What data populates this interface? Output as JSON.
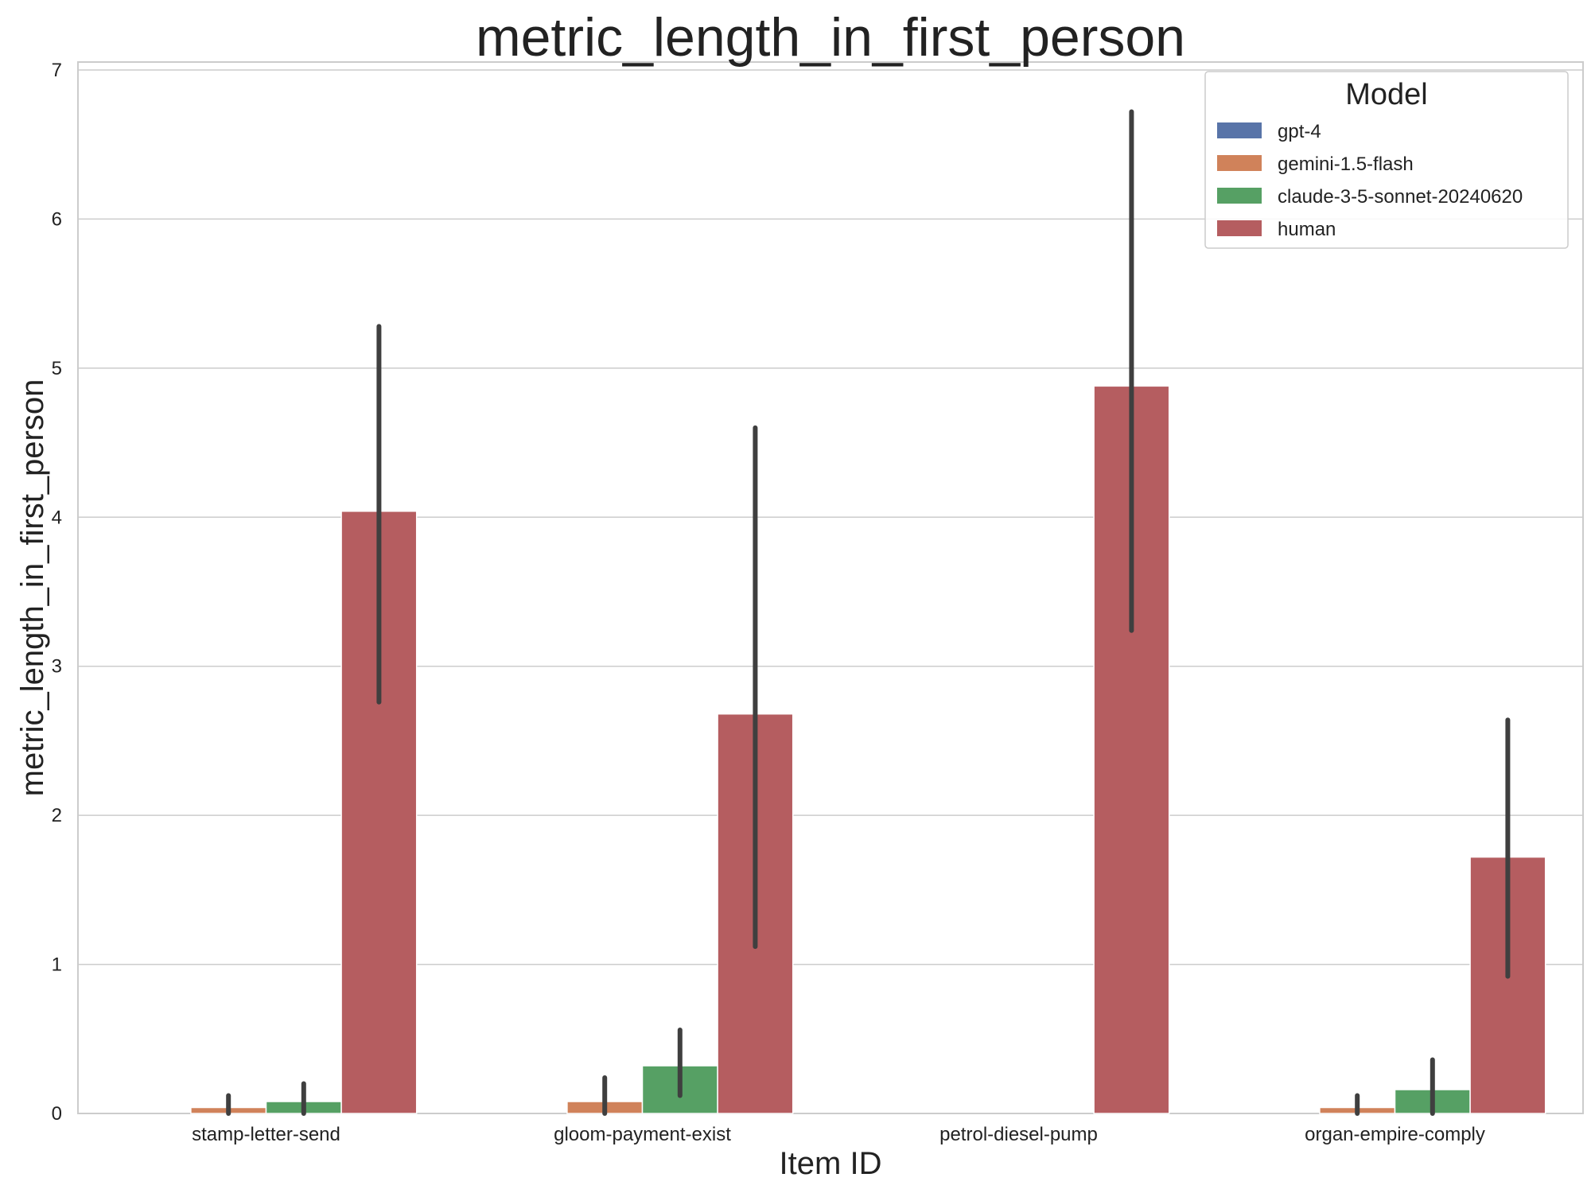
{
  "chart_data": {
    "type": "bar",
    "title": "metric_length_in_first_person",
    "xlabel": "Item ID",
    "ylabel": "metric_length_in_first_person",
    "ylim": [
      0,
      7
    ],
    "yticks": [
      0,
      1,
      2,
      3,
      4,
      5,
      6,
      7
    ],
    "grid": true,
    "legend": {
      "title": "Model",
      "placement": "top-right"
    },
    "categories": [
      "stamp-letter-send",
      "gloom-payment-exist",
      "petrol-diesel-pump",
      "organ-empire-comply"
    ],
    "series": [
      {
        "name": "gpt-4",
        "color": "#5874a8",
        "values": [
          0,
          0,
          0,
          0
        ],
        "ci": [
          null,
          null,
          null,
          null
        ]
      },
      {
        "name": "gemini-1.5-flash",
        "color": "#d0825a",
        "values": [
          0.04,
          0.08,
          0,
          0.04
        ],
        "ci": [
          [
            0,
            0.12
          ],
          [
            0,
            0.24
          ],
          null,
          [
            0,
            0.12
          ]
        ]
      },
      {
        "name": "claude-3-5-sonnet-20240620",
        "color": "#56a064",
        "values": [
          0.08,
          0.32,
          0,
          0.16
        ],
        "ci": [
          [
            0,
            0.2
          ],
          [
            0.12,
            0.56
          ],
          null,
          [
            0,
            0.36
          ]
        ]
      },
      {
        "name": "human",
        "color": "#b55d60",
        "values": [
          4.04,
          2.68,
          4.88,
          1.72
        ],
        "ci": [
          [
            2.76,
            5.28
          ],
          [
            1.12,
            4.6
          ],
          [
            3.24,
            6.72
          ],
          [
            0.92,
            2.64
          ]
        ]
      }
    ]
  }
}
